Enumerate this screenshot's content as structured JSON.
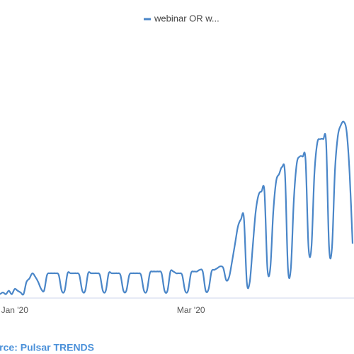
{
  "chart_data": {
    "type": "line",
    "legend": "webinar OR w...",
    "source": "Source: Pulsar TRENDS",
    "categories": [
      null,
      null,
      null,
      null,
      null,
      "Jan '20",
      null,
      null,
      null,
      null,
      null,
      null,
      null,
      null,
      null,
      null,
      null,
      null,
      null,
      null,
      null,
      null,
      null,
      null,
      null,
      null,
      null,
      null,
      null,
      null,
      null,
      null,
      null,
      null,
      null,
      null,
      null,
      null,
      null,
      null,
      null,
      null,
      null,
      null,
      null,
      null,
      null,
      null,
      null,
      null,
      null,
      null,
      null,
      null,
      null,
      null,
      null,
      null,
      null,
      null,
      null,
      null,
      null,
      null,
      null,
      "Mar '20",
      null,
      null,
      null,
      null,
      null,
      null,
      null,
      null,
      null,
      null,
      null,
      null,
      null,
      null,
      null,
      null,
      null,
      null,
      null,
      null,
      null,
      null,
      null,
      null,
      null,
      null,
      null,
      null,
      null,
      null,
      null,
      null,
      null,
      null,
      null,
      null,
      null,
      null,
      null,
      null,
      null,
      null,
      null,
      null,
      null,
      null,
      null,
      null,
      null,
      null,
      null,
      null,
      null,
      null,
      null
    ],
    "series": [
      {
        "name": "webinar OR w...",
        "color": "#4a86c8",
        "values": [
          1,
          2,
          1,
          3,
          1,
          4,
          3,
          2,
          1,
          8,
          10,
          13,
          11,
          8,
          4,
          3,
          12,
          13,
          13,
          13,
          12,
          3,
          3,
          13,
          13,
          13,
          13,
          12,
          3,
          3,
          13,
          13,
          13,
          13,
          12,
          3,
          3,
          13,
          13,
          13,
          13,
          12,
          3,
          3,
          12,
          13,
          13,
          13,
          12,
          3,
          3,
          13,
          14,
          14,
          14,
          13,
          3,
          3,
          14,
          14,
          13,
          13,
          12,
          3,
          3,
          13,
          14,
          14,
          15,
          14,
          3,
          4,
          14,
          15,
          16,
          17,
          16,
          9,
          11,
          20,
          30,
          40,
          44,
          45,
          8,
          8,
          28,
          48,
          58,
          60,
          60,
          16,
          16,
          48,
          66,
          70,
          74,
          70,
          16,
          16,
          55,
          76,
          80,
          80,
          78,
          28,
          28,
          70,
          88,
          90,
          90,
          88,
          28,
          28,
          72,
          92,
          98,
          100,
          94,
          70,
          30
        ]
      }
    ],
    "ylim": [
      0,
      100
    ]
  }
}
